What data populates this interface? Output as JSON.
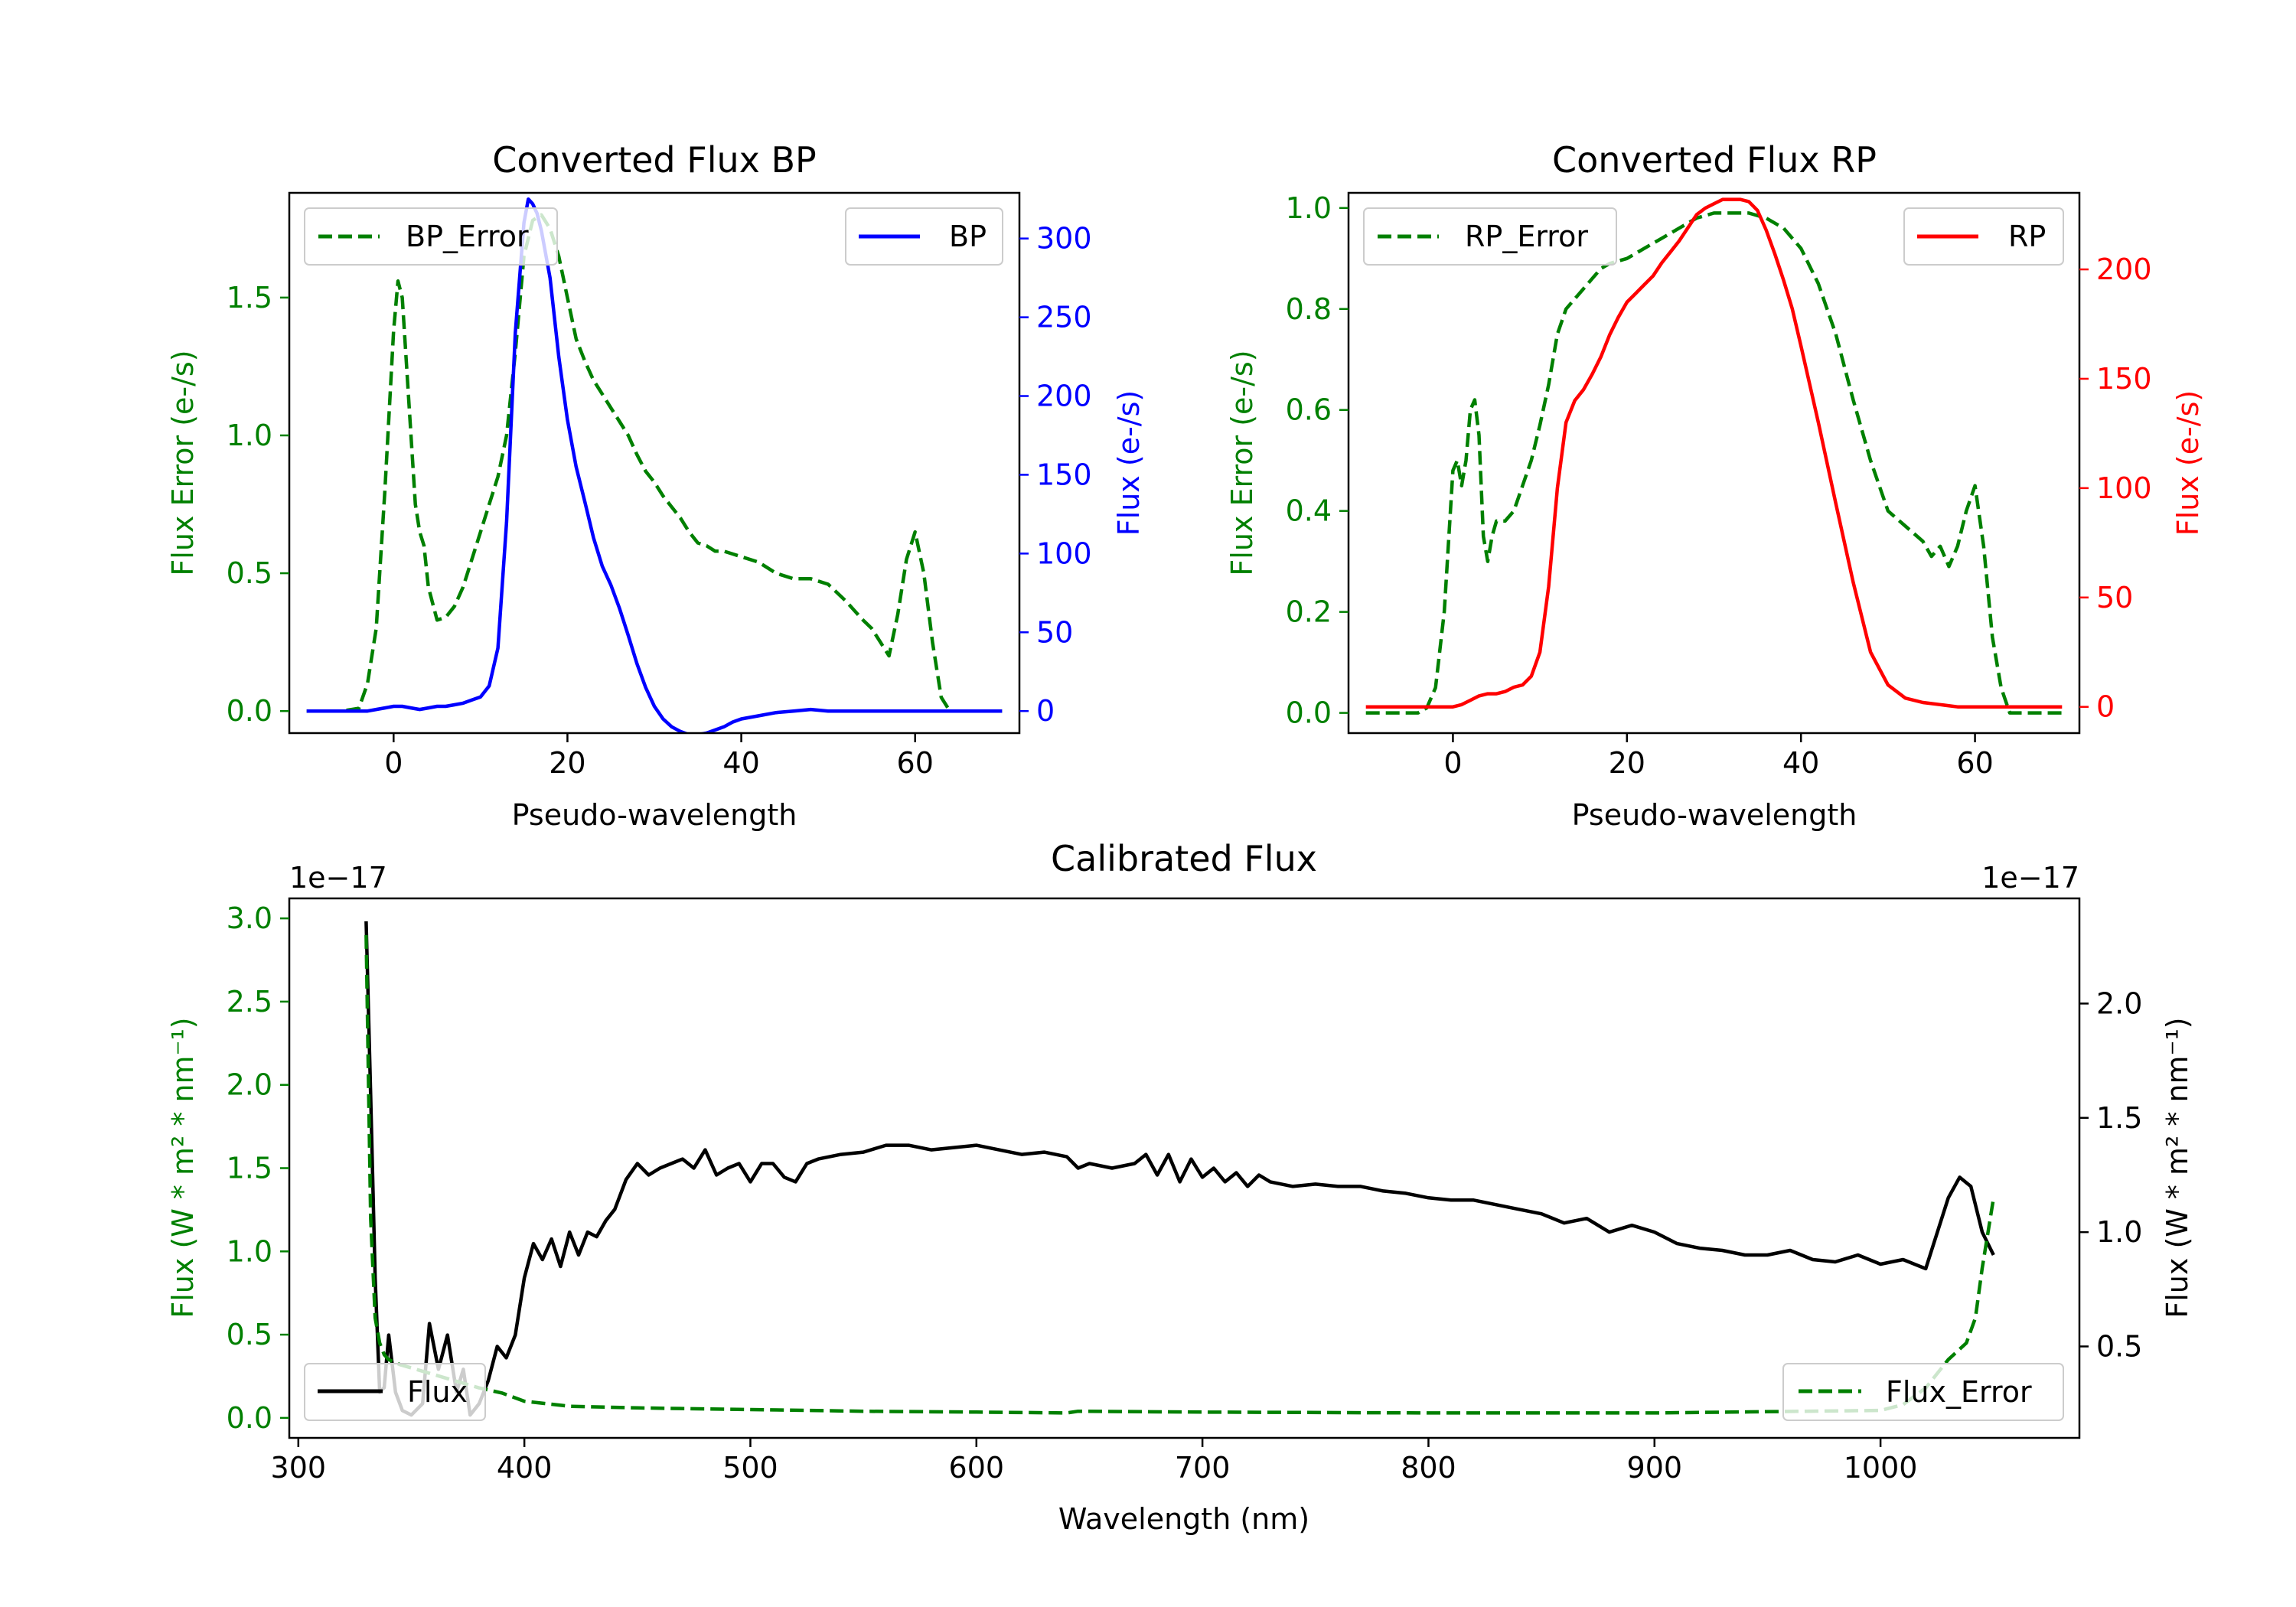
{
  "chart_data": [
    {
      "id": "bp",
      "type": "line",
      "title": "Converted Flux BP",
      "xlabel": "Pseudo-wavelength",
      "xlim": [
        -12,
        72
      ],
      "xticks": [
        0,
        20,
        40,
        60
      ],
      "left_axis": {
        "label": "Flux Error (e-/s)",
        "color": "#008000",
        "ylim": [
          -0.08,
          1.88
        ],
        "ticks": [
          0.0,
          0.5,
          1.0,
          1.5
        ],
        "tick_labels": [
          "0.0",
          "0.5",
          "1.0",
          "1.5"
        ]
      },
      "right_axis": {
        "label": "Flux (e-/s)",
        "color": "#0000ff",
        "ylim": [
          -14,
          329
        ],
        "ticks": [
          0,
          50,
          100,
          150,
          200,
          250,
          300
        ],
        "tick_labels": [
          "0",
          "50",
          "100",
          "150",
          "200",
          "250",
          "300"
        ]
      },
      "series": [
        {
          "name": "BP_Error",
          "legend": "BP_Error",
          "axis": "left",
          "color": "#008000",
          "dash": true,
          "x": [
            -10,
            -6,
            -4,
            -3,
            -2,
            -1,
            0,
            0.5,
            1,
            1.5,
            2,
            2.5,
            3,
            3.5,
            4,
            5,
            6,
            7,
            8,
            9,
            10,
            11,
            12,
            13,
            14,
            15,
            16,
            17,
            18,
            19,
            20,
            21,
            22,
            23,
            24,
            25,
            26,
            27,
            28,
            29,
            30,
            31,
            32,
            33,
            34,
            35,
            36,
            37,
            38,
            39,
            40,
            42,
            44,
            46,
            48,
            50,
            52,
            54,
            55,
            56,
            57,
            58,
            59,
            60,
            61,
            62,
            63,
            64,
            65,
            70
          ],
          "values": [
            0,
            0,
            0.01,
            0.1,
            0.3,
            0.8,
            1.38,
            1.56,
            1.5,
            1.25,
            1.0,
            0.75,
            0.65,
            0.6,
            0.45,
            0.33,
            0.34,
            0.38,
            0.45,
            0.55,
            0.65,
            0.75,
            0.85,
            1.0,
            1.3,
            1.65,
            1.78,
            1.8,
            1.75,
            1.65,
            1.5,
            1.35,
            1.27,
            1.2,
            1.15,
            1.1,
            1.05,
            1.0,
            0.93,
            0.87,
            0.83,
            0.78,
            0.74,
            0.7,
            0.65,
            0.61,
            0.6,
            0.58,
            0.58,
            0.57,
            0.56,
            0.54,
            0.5,
            0.48,
            0.48,
            0.46,
            0.4,
            0.33,
            0.3,
            0.25,
            0.2,
            0.35,
            0.55,
            0.65,
            0.5,
            0.25,
            0.05,
            0.0,
            0,
            0
          ]
        },
        {
          "name": "BP",
          "legend": "BP",
          "axis": "right",
          "color": "#0000ff",
          "dash": false,
          "x": [
            -10,
            -5,
            -3,
            -2,
            -1,
            0,
            1,
            2,
            3,
            4,
            5,
            6,
            7,
            8,
            9,
            10,
            11,
            12,
            13,
            14,
            15,
            15.5,
            16,
            16.5,
            17,
            18,
            19,
            20,
            21,
            22,
            23,
            24,
            25,
            26,
            27,
            28,
            29,
            30,
            31,
            32,
            33,
            34,
            35,
            36,
            37,
            38,
            39,
            40,
            42,
            44,
            46,
            48,
            50,
            55,
            60,
            65,
            70
          ],
          "values": [
            0,
            0,
            0,
            1,
            2,
            3,
            3,
            2,
            1,
            2,
            3,
            3,
            4,
            5,
            7,
            9,
            16,
            40,
            120,
            240,
            310,
            325,
            322,
            316,
            305,
            275,
            225,
            185,
            155,
            133,
            110,
            92,
            80,
            65,
            48,
            30,
            15,
            3,
            -5,
            -10,
            -13,
            -15,
            -15,
            -14,
            -12,
            -10,
            -7,
            -5,
            -3,
            -1,
            0,
            1,
            0,
            0,
            0,
            0,
            0
          ]
        }
      ]
    },
    {
      "id": "rp",
      "type": "line",
      "title": "Converted Flux RP",
      "xlabel": "Pseudo-wavelength",
      "xlim": [
        -12,
        72
      ],
      "xticks": [
        0,
        20,
        40,
        60
      ],
      "left_axis": {
        "label": "Flux Error (e-/s)",
        "color": "#008000",
        "ylim": [
          -0.04,
          1.03
        ],
        "ticks": [
          0.0,
          0.2,
          0.4,
          0.6,
          0.8,
          1.0
        ],
        "tick_labels": [
          "0.0",
          "0.2",
          "0.4",
          "0.6",
          "0.8",
          "1.0"
        ]
      },
      "right_axis": {
        "label": "Flux (e-/s)",
        "color": "#ff0000",
        "ylim": [
          -12,
          235
        ],
        "ticks": [
          0,
          50,
          100,
          150,
          200
        ],
        "tick_labels": [
          "0",
          "50",
          "100",
          "150",
          "200"
        ]
      },
      "series": [
        {
          "name": "RP_Error",
          "legend": "RP_Error",
          "axis": "left",
          "color": "#008000",
          "dash": true,
          "x": [
            -10,
            -4,
            -3,
            -2,
            -1,
            0,
            0.5,
            1,
            1.5,
            2,
            2.5,
            3,
            3.5,
            4,
            4.5,
            5,
            6,
            7,
            8,
            9,
            10,
            11,
            12,
            13,
            14,
            15,
            16,
            17,
            18,
            20,
            22,
            24,
            26,
            28,
            30,
            32,
            34,
            36,
            38,
            40,
            42,
            44,
            46,
            48,
            50,
            52,
            54,
            55,
            56,
            57,
            58,
            59,
            60,
            61,
            62,
            63,
            64,
            65,
            70
          ],
          "values": [
            0,
            0,
            0.01,
            0.05,
            0.2,
            0.48,
            0.5,
            0.45,
            0.5,
            0.6,
            0.62,
            0.55,
            0.35,
            0.3,
            0.35,
            0.38,
            0.38,
            0.4,
            0.45,
            0.5,
            0.57,
            0.65,
            0.75,
            0.8,
            0.82,
            0.84,
            0.86,
            0.88,
            0.89,
            0.9,
            0.92,
            0.94,
            0.96,
            0.98,
            0.99,
            0.99,
            0.99,
            0.98,
            0.96,
            0.92,
            0.85,
            0.75,
            0.62,
            0.5,
            0.4,
            0.37,
            0.34,
            0.31,
            0.33,
            0.29,
            0.33,
            0.4,
            0.45,
            0.33,
            0.15,
            0.05,
            0.0,
            0,
            0
          ]
        },
        {
          "name": "RP",
          "legend": "RP",
          "axis": "right",
          "color": "#ff0000",
          "dash": false,
          "x": [
            -10,
            -3,
            -1,
            0,
            1,
            2,
            3,
            4,
            5,
            6,
            7,
            8,
            9,
            10,
            11,
            12,
            13,
            14,
            15,
            16,
            17,
            18,
            19,
            20,
            21,
            22,
            23,
            24,
            25,
            26,
            27,
            28,
            29,
            30,
            31,
            32,
            33,
            34,
            35,
            36,
            37,
            38,
            39,
            40,
            42,
            44,
            46,
            48,
            50,
            52,
            54,
            56,
            58,
            60,
            65,
            70
          ],
          "values": [
            0,
            0,
            0,
            0,
            1,
            3,
            5,
            6,
            6,
            7,
            9,
            10,
            14,
            25,
            55,
            100,
            130,
            140,
            145,
            152,
            160,
            170,
            178,
            185,
            189,
            193,
            197,
            203,
            208,
            213,
            219,
            225,
            228,
            230,
            232,
            232,
            232,
            231,
            227,
            218,
            207,
            195,
            182,
            165,
            130,
            93,
            57,
            25,
            10,
            4,
            2,
            1,
            0,
            0,
            0,
            0
          ]
        }
      ]
    },
    {
      "id": "calibrated",
      "type": "line",
      "title": "Calibrated Flux",
      "xlabel": "Wavelength (nm)",
      "xlim": [
        296,
        1088
      ],
      "xticks": [
        300,
        400,
        500,
        600,
        700,
        800,
        900,
        1000
      ],
      "left_axis": {
        "label": "Flux (W * m² * nm⁻¹)",
        "color": "#008000",
        "offset_text": "1e−17",
        "ylim": [
          -0.12,
          3.12
        ],
        "ticks": [
          0.0,
          0.5,
          1.0,
          1.5,
          2.0,
          2.5,
          3.0
        ],
        "tick_labels": [
          "0.0",
          "0.5",
          "1.0",
          "1.5",
          "2.0",
          "2.5",
          "3.0"
        ]
      },
      "right_axis": {
        "label": "Flux (W * m² * nm⁻¹)",
        "color": "#000000",
        "offset_text": "1e−17",
        "ylim": [
          0.1,
          2.46
        ],
        "ticks": [
          0.5,
          1.0,
          1.5,
          2.0
        ],
        "tick_labels": [
          "0.5",
          "1.0",
          "1.5",
          "2.0"
        ]
      },
      "series": [
        {
          "name": "Flux",
          "legend": "Flux",
          "axis": "right",
          "color": "#000000",
          "dash": false,
          "x": [
            330,
            332,
            334,
            336,
            338,
            340,
            343,
            346,
            350,
            355,
            358,
            362,
            366,
            370,
            373,
            376,
            380,
            384,
            388,
            392,
            396,
            400,
            404,
            408,
            412,
            416,
            420,
            424,
            428,
            432,
            436,
            440,
            445,
            450,
            455,
            460,
            465,
            470,
            475,
            480,
            485,
            490,
            495,
            500,
            505,
            510,
            515,
            520,
            525,
            530,
            540,
            550,
            560,
            570,
            580,
            590,
            600,
            610,
            620,
            630,
            640,
            645,
            650,
            660,
            670,
            675,
            680,
            685,
            690,
            695,
            700,
            705,
            710,
            715,
            720,
            725,
            730,
            740,
            750,
            760,
            770,
            780,
            790,
            800,
            810,
            820,
            830,
            840,
            850,
            860,
            870,
            880,
            890,
            900,
            910,
            920,
            930,
            940,
            950,
            960,
            970,
            980,
            990,
            1000,
            1010,
            1020,
            1030,
            1035,
            1040,
            1045,
            1050
          ],
          "values": [
            2.36,
            1.6,
            0.8,
            0.3,
            0.32,
            0.55,
            0.3,
            0.22,
            0.2,
            0.25,
            0.6,
            0.4,
            0.55,
            0.3,
            0.4,
            0.2,
            0.25,
            0.35,
            0.5,
            0.45,
            0.55,
            0.8,
            0.95,
            0.88,
            0.97,
            0.85,
            1.0,
            0.9,
            1.0,
            0.98,
            1.05,
            1.1,
            1.23,
            1.3,
            1.25,
            1.28,
            1.3,
            1.32,
            1.28,
            1.36,
            1.25,
            1.28,
            1.3,
            1.22,
            1.3,
            1.3,
            1.24,
            1.22,
            1.3,
            1.32,
            1.34,
            1.35,
            1.38,
            1.38,
            1.36,
            1.37,
            1.38,
            1.36,
            1.34,
            1.35,
            1.33,
            1.28,
            1.3,
            1.28,
            1.3,
            1.34,
            1.25,
            1.34,
            1.22,
            1.32,
            1.24,
            1.28,
            1.22,
            1.26,
            1.2,
            1.25,
            1.22,
            1.2,
            1.21,
            1.2,
            1.2,
            1.18,
            1.17,
            1.15,
            1.14,
            1.14,
            1.12,
            1.1,
            1.08,
            1.04,
            1.06,
            1.0,
            1.03,
            1.0,
            0.95,
            0.93,
            0.92,
            0.9,
            0.9,
            0.92,
            0.88,
            0.87,
            0.9,
            0.86,
            0.88,
            0.84,
            1.15,
            1.24,
            1.2,
            1.0,
            0.9
          ]
        },
        {
          "name": "Flux_Error",
          "legend": "Flux_Error",
          "axis": "left",
          "color": "#008000",
          "dash": true,
          "x": [
            330,
            332,
            334,
            336,
            338,
            340,
            345,
            350,
            360,
            370,
            380,
            390,
            400,
            420,
            450,
            500,
            550,
            600,
            640,
            645,
            700,
            800,
            900,
            1000,
            1010,
            1020,
            1030,
            1038,
            1042,
            1045,
            1050
          ],
          "values": [
            2.9,
            1.2,
            0.6,
            0.45,
            0.38,
            0.35,
            0.32,
            0.3,
            0.26,
            0.22,
            0.18,
            0.15,
            0.1,
            0.07,
            0.06,
            0.05,
            0.04,
            0.035,
            0.03,
            0.04,
            0.035,
            0.03,
            0.03,
            0.045,
            0.08,
            0.18,
            0.35,
            0.45,
            0.6,
            0.9,
            1.32
          ]
        }
      ]
    }
  ]
}
